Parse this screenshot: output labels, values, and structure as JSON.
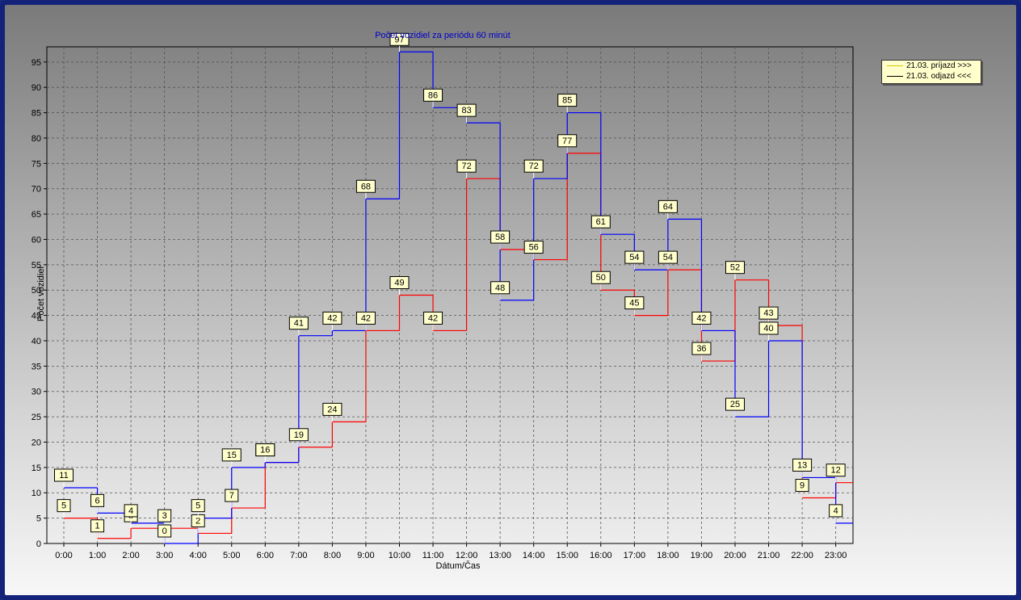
{
  "chart_data": {
    "type": "line",
    "step": true,
    "title": "Počet vozidiel za periódu 60 minút",
    "xlabel": "Dátum/Čas",
    "ylabel": "Počet vozidiel",
    "ylim": [
      0,
      98
    ],
    "yticks": [
      0,
      5,
      10,
      15,
      20,
      25,
      30,
      35,
      40,
      45,
      50,
      55,
      60,
      65,
      70,
      75,
      80,
      85,
      90,
      95
    ],
    "categories": [
      "0:00",
      "1:00",
      "2:00",
      "3:00",
      "4:00",
      "5:00",
      "6:00",
      "7:00",
      "8:00",
      "9:00",
      "10:00",
      "11:00",
      "12:00",
      "13:00",
      "14:00",
      "15:00",
      "16:00",
      "17:00",
      "18:00",
      "19:00",
      "20:00",
      "21:00",
      "22:00",
      "23:00"
    ],
    "grid": true,
    "legend_position": "top-right",
    "series": [
      {
        "name": "21.03.  príjazd >>>",
        "color": "#ff0000",
        "values": [
          5,
          1,
          3,
          3,
          2,
          7,
          16,
          19,
          24,
          42,
          49,
          42,
          72,
          58,
          56,
          77,
          50,
          45,
          54,
          36,
          52,
          43,
          9,
          12
        ]
      },
      {
        "name": "21.03.  odjazd <<<",
        "color": "#0000ff",
        "values": [
          11,
          6,
          4,
          0,
          5,
          15,
          16,
          41,
          42,
          68,
          97,
          86,
          83,
          48,
          72,
          85,
          61,
          54,
          64,
          42,
          25,
          40,
          13,
          4
        ]
      }
    ]
  }
}
